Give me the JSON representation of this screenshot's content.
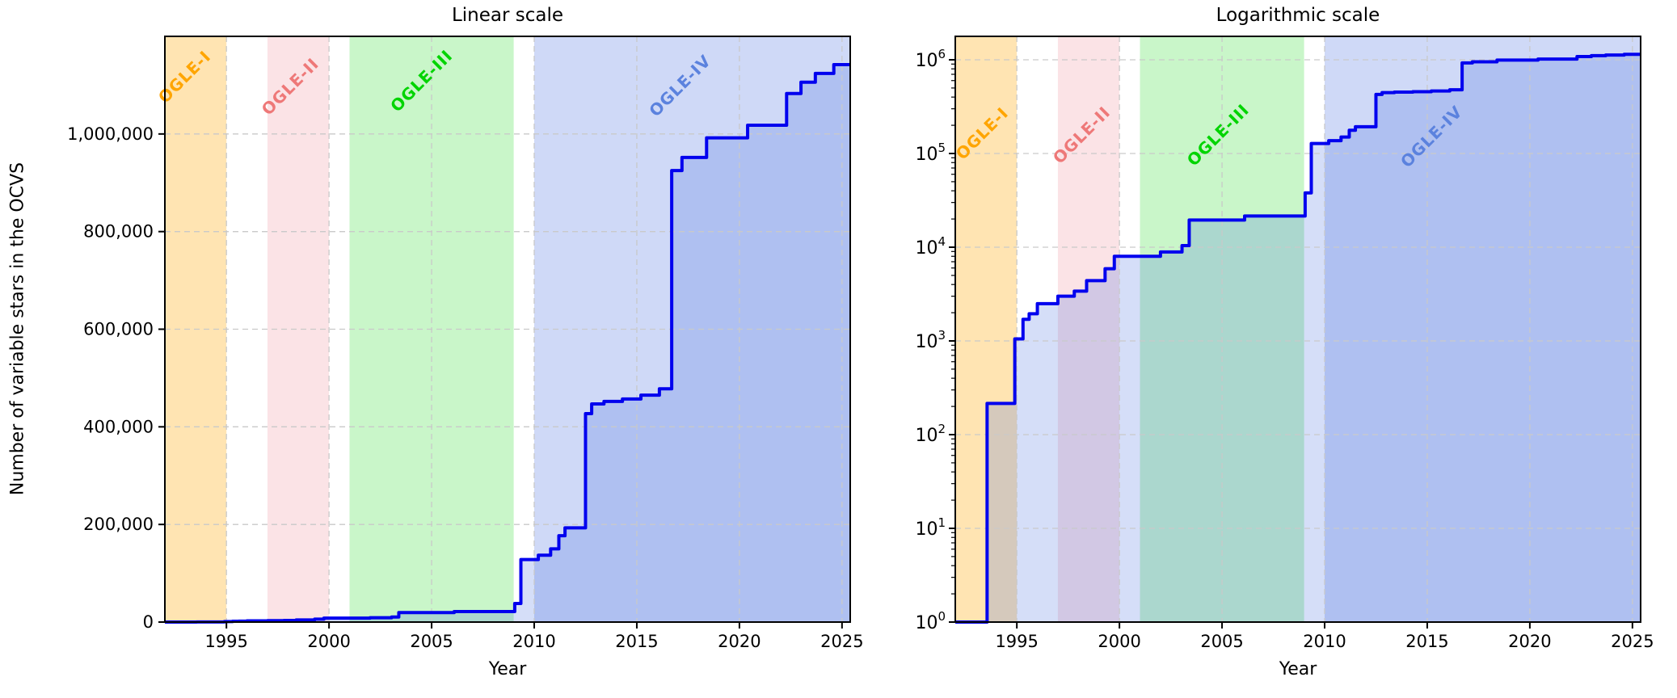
{
  "chart_data": {
    "type": "line",
    "step_mode": "post",
    "xlabel": "Year",
    "x_range": [
      1992,
      2025.4
    ],
    "x_ticks": [
      1995,
      2000,
      2005,
      2010,
      2015,
      2020,
      2025
    ],
    "grid": true,
    "legend": "none",
    "panels": [
      {
        "id": "linear",
        "title": "Linear scale",
        "scale": "linear",
        "ylabel": "Number of variable stars in the OCVS",
        "y_range": [
          0,
          1200000
        ],
        "y_ticks": [
          {
            "value": 0,
            "label": "0"
          },
          {
            "value": 200000,
            "label": "200,000"
          },
          {
            "value": 400000,
            "label": "400,000"
          },
          {
            "value": 600000,
            "label": "600,000"
          },
          {
            "value": 800000,
            "label": "800,000"
          },
          {
            "value": 1000000,
            "label": "1,000,000"
          }
        ]
      },
      {
        "id": "log",
        "title": "Logarithmic scale",
        "scale": "log",
        "ylabel": "",
        "y_range_exp": [
          0,
          6.25
        ],
        "y_ticks_exp": [
          0,
          1,
          2,
          3,
          4,
          5,
          6
        ],
        "y_tick_base": "10"
      }
    ],
    "bands": [
      {
        "name": "OGLE-I",
        "start": 1992,
        "end": 1995,
        "fill": "rgba(255,165,0,0.30)",
        "label_color": "#FFA500"
      },
      {
        "name": "OGLE-II",
        "start": 1997,
        "end": 2000,
        "fill": "rgba(230,70,90,0.15)",
        "label_color": "#EE7878"
      },
      {
        "name": "OGLE-III",
        "start": 2001,
        "end": 2009,
        "fill": "rgba(40,220,40,0.25)",
        "label_color": "#00D400"
      },
      {
        "name": "OGLE-IV",
        "start": 2010,
        "end": 2025.4,
        "fill": "rgba(65,105,225,0.25)",
        "label_color": "#5B82DE"
      }
    ],
    "series": [
      {
        "name": "Number of variable stars in the OCVS",
        "color": "#0000EE",
        "fill": "rgba(65,105,225,0.22)",
        "line_width": 4,
        "points": [
          [
            1992.0,
            0
          ],
          [
            1993.55,
            215
          ],
          [
            1994.9,
            1050
          ],
          [
            1995.3,
            1700
          ],
          [
            1995.6,
            1950
          ],
          [
            1996.0,
            2500
          ],
          [
            1997.0,
            3000
          ],
          [
            1997.8,
            3400
          ],
          [
            1998.4,
            4400
          ],
          [
            1999.3,
            5900
          ],
          [
            1999.75,
            8000
          ],
          [
            2002.0,
            8900
          ],
          [
            2003.05,
            10400
          ],
          [
            2003.4,
            19500
          ],
          [
            2006.1,
            21500
          ],
          [
            2009.05,
            38000
          ],
          [
            2009.35,
            128000
          ],
          [
            2010.2,
            137000
          ],
          [
            2010.8,
            150000
          ],
          [
            2011.2,
            177000
          ],
          [
            2011.5,
            193000
          ],
          [
            2012.5,
            427000
          ],
          [
            2012.8,
            447000
          ],
          [
            2013.4,
            452000
          ],
          [
            2014.3,
            457000
          ],
          [
            2015.2,
            465000
          ],
          [
            2016.1,
            478000
          ],
          [
            2016.7,
            925000
          ],
          [
            2017.2,
            952000
          ],
          [
            2018.4,
            992000
          ],
          [
            2020.4,
            1018000
          ],
          [
            2022.3,
            1083000
          ],
          [
            2023.0,
            1106000
          ],
          [
            2023.7,
            1124000
          ],
          [
            2024.6,
            1142000
          ]
        ]
      }
    ],
    "grid_color": "#c9c9c9",
    "frame_color": "#000000"
  }
}
